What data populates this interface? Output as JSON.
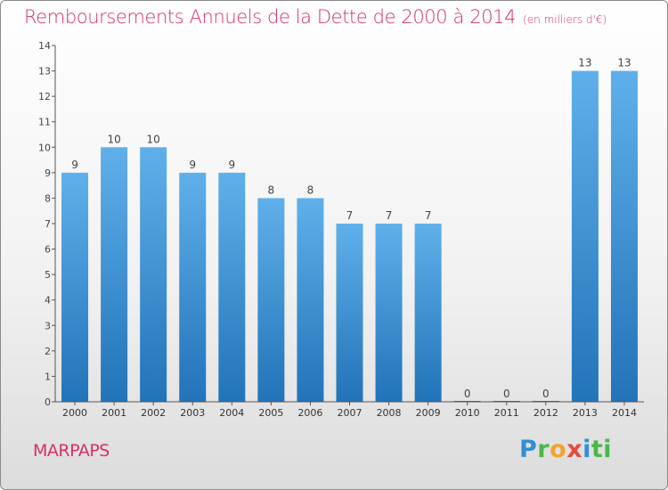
{
  "title": "Remboursements Annuels de la Dette de 2000 à 2014",
  "unit_note": "(en milliers d'€)",
  "commune": "MARPAPS",
  "brand": [
    "P",
    "r",
    "o",
    "x",
    "i",
    "ti"
  ],
  "colors": {
    "title": "#d6306a",
    "bar_top": "#5fb0ea",
    "bar_bottom": "#2273b8",
    "axis": "#555555",
    "brand_blue": "#2f8fd6",
    "brand_green": "#4bb748",
    "brand_orange": "#f3a32b",
    "brand_red": "#e64a3c"
  },
  "chart_data": {
    "type": "bar",
    "title": "Remboursements Annuels de la Dette de 2000 à 2014",
    "xlabel": "",
    "ylabel": "",
    "categories": [
      "2000",
      "2001",
      "2002",
      "2003",
      "2004",
      "2005",
      "2006",
      "2007",
      "2008",
      "2009",
      "2010",
      "2011",
      "2012",
      "2013",
      "2014"
    ],
    "values": [
      9,
      10,
      10,
      9,
      9,
      8,
      8,
      7,
      7,
      7,
      0,
      0,
      0,
      13,
      13
    ],
    "value_labels": [
      "9",
      "10",
      "10",
      "9",
      "9",
      "8",
      "8",
      "7",
      "7",
      "7",
      "0",
      "0",
      "0",
      "13",
      "13"
    ],
    "yticks": [
      "0",
      "1",
      "2",
      "3",
      "4",
      "5",
      "6",
      "7",
      "8",
      "9",
      "10",
      "11",
      "12",
      "13",
      "14"
    ],
    "ylim": [
      0,
      14
    ],
    "grid": false,
    "legend": "none"
  }
}
